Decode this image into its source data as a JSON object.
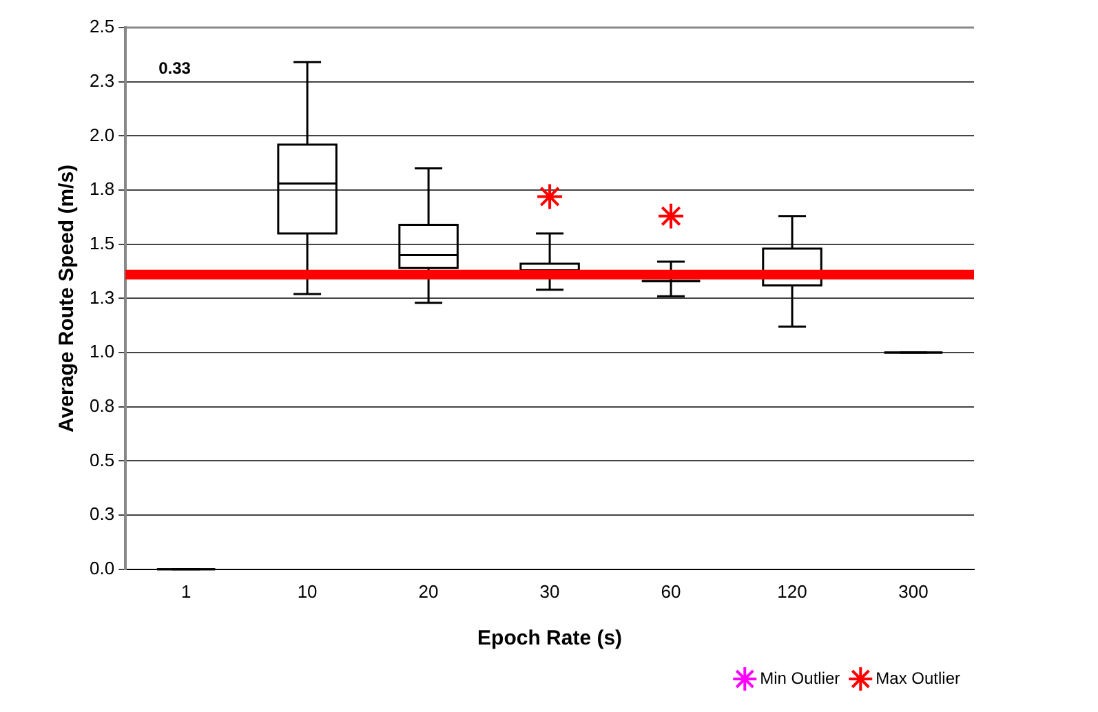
{
  "chart_data": {
    "type": "box",
    "xlabel": "Epoch Rate (s)",
    "ylabel": "Average Route Speed (m/s)",
    "categories": [
      "1",
      "10",
      "20",
      "30",
      "60",
      "120",
      "300"
    ],
    "boxes": [
      {
        "low": 0,
        "q1": 0,
        "median": 0,
        "q3": 0,
        "high": 0
      },
      {
        "low": 1.27,
        "q1": 1.55,
        "median": 1.78,
        "q3": 1.96,
        "high": 2.34
      },
      {
        "low": 1.23,
        "q1": 1.39,
        "median": 1.45,
        "q3": 1.59,
        "high": 1.85
      },
      {
        "low": 1.29,
        "q1": 1.35,
        "median": 1.38,
        "q3": 1.41,
        "high": 1.55
      },
      {
        "low": 1.26,
        "q1": 1.33,
        "median": 1.33,
        "q3": 1.33,
        "high": 1.42
      },
      {
        "low": 1.12,
        "q1": 1.31,
        "median": 1.36,
        "q3": 1.48,
        "high": 1.63
      },
      {
        "low": 1.0,
        "q1": 1.0,
        "median": 1.0,
        "q3": 1.0,
        "high": 1.0
      }
    ],
    "series": [
      {
        "name": "Min Outlier",
        "type": "scatter",
        "color": "#ff00ff",
        "x": [
          "1",
          "10",
          "20",
          "30",
          "60",
          "120",
          "300"
        ],
        "values": [
          null,
          null,
          null,
          null,
          null,
          null,
          null
        ]
      },
      {
        "name": "Max Outlier",
        "type": "scatter",
        "color": "#ff0000",
        "x": [
          "1",
          "10",
          "20",
          "30",
          "60",
          "120",
          "300"
        ],
        "values": [
          null,
          null,
          null,
          1.72,
          1.63,
          null,
          null
        ]
      }
    ],
    "marker": "cross",
    "color": "#000000",
    "ylim": [
      0,
      2.5
    ],
    "yticks": [
      {
        "value": 0,
        "label": "0.0"
      },
      {
        "value": 0.25,
        "label": "0.3"
      },
      0.5,
      {
        "value": 0.75,
        "label": "0.8"
      },
      {
        "value": 1,
        "label": "1.0"
      },
      {
        "value": 1.25,
        "label": "1.3"
      },
      1.5,
      {
        "value": 1.75,
        "label": "1.8"
      },
      {
        "value": 2,
        "label": "2.0"
      },
      {
        "value": 2.25,
        "label": "2.3"
      },
      2.5
    ],
    "ref_lines": [
      {
        "axis": "y",
        "value": 1.36,
        "color": "#ff0000"
      }
    ],
    "annotations": [
      "0.33"
    ],
    "grid": "y",
    "legend": "bottom right"
  }
}
